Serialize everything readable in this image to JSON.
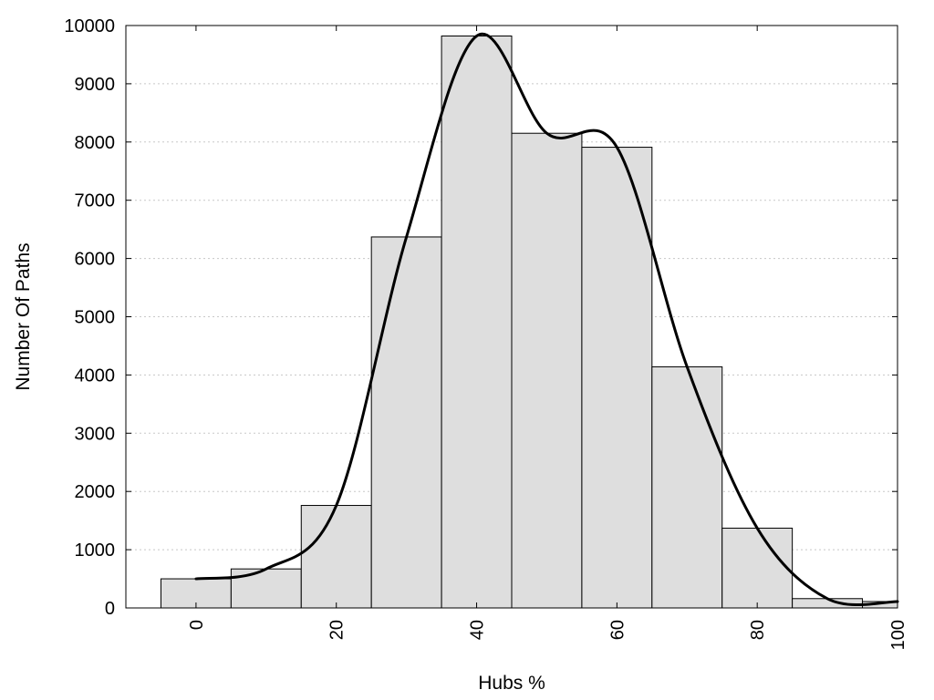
{
  "chart_data": {
    "type": "bar",
    "title": "",
    "xlabel": "Hubs %",
    "ylabel": "Number Of Paths",
    "xlim": [
      -10,
      100
    ],
    "ylim": [
      0,
      10000
    ],
    "bin_width": 10,
    "x_ticks": [
      0,
      20,
      40,
      60,
      80,
      100
    ],
    "y_ticks": [
      0,
      1000,
      2000,
      3000,
      4000,
      5000,
      6000,
      7000,
      8000,
      9000,
      10000
    ],
    "grid": "horizontal dotted",
    "series": [
      {
        "kind": "bar",
        "x": [
          0,
          10,
          20,
          30,
          40,
          50,
          60,
          70,
          80,
          90,
          100
        ],
        "values": [
          500,
          670,
          1760,
          6370,
          9820,
          8150,
          7910,
          4140,
          1370,
          160,
          110
        ]
      },
      {
        "kind": "line",
        "x": [
          0,
          10,
          20,
          30,
          40,
          50,
          60,
          70,
          80,
          90,
          100
        ],
        "values": [
          500,
          670,
          1760,
          6370,
          9820,
          8150,
          7910,
          4140,
          1370,
          160,
          110
        ]
      }
    ],
    "colors": {
      "bar_fill": "#dedede",
      "bar_stroke": "#000000",
      "line": "#000000",
      "grid": "#c8c8c8"
    }
  }
}
